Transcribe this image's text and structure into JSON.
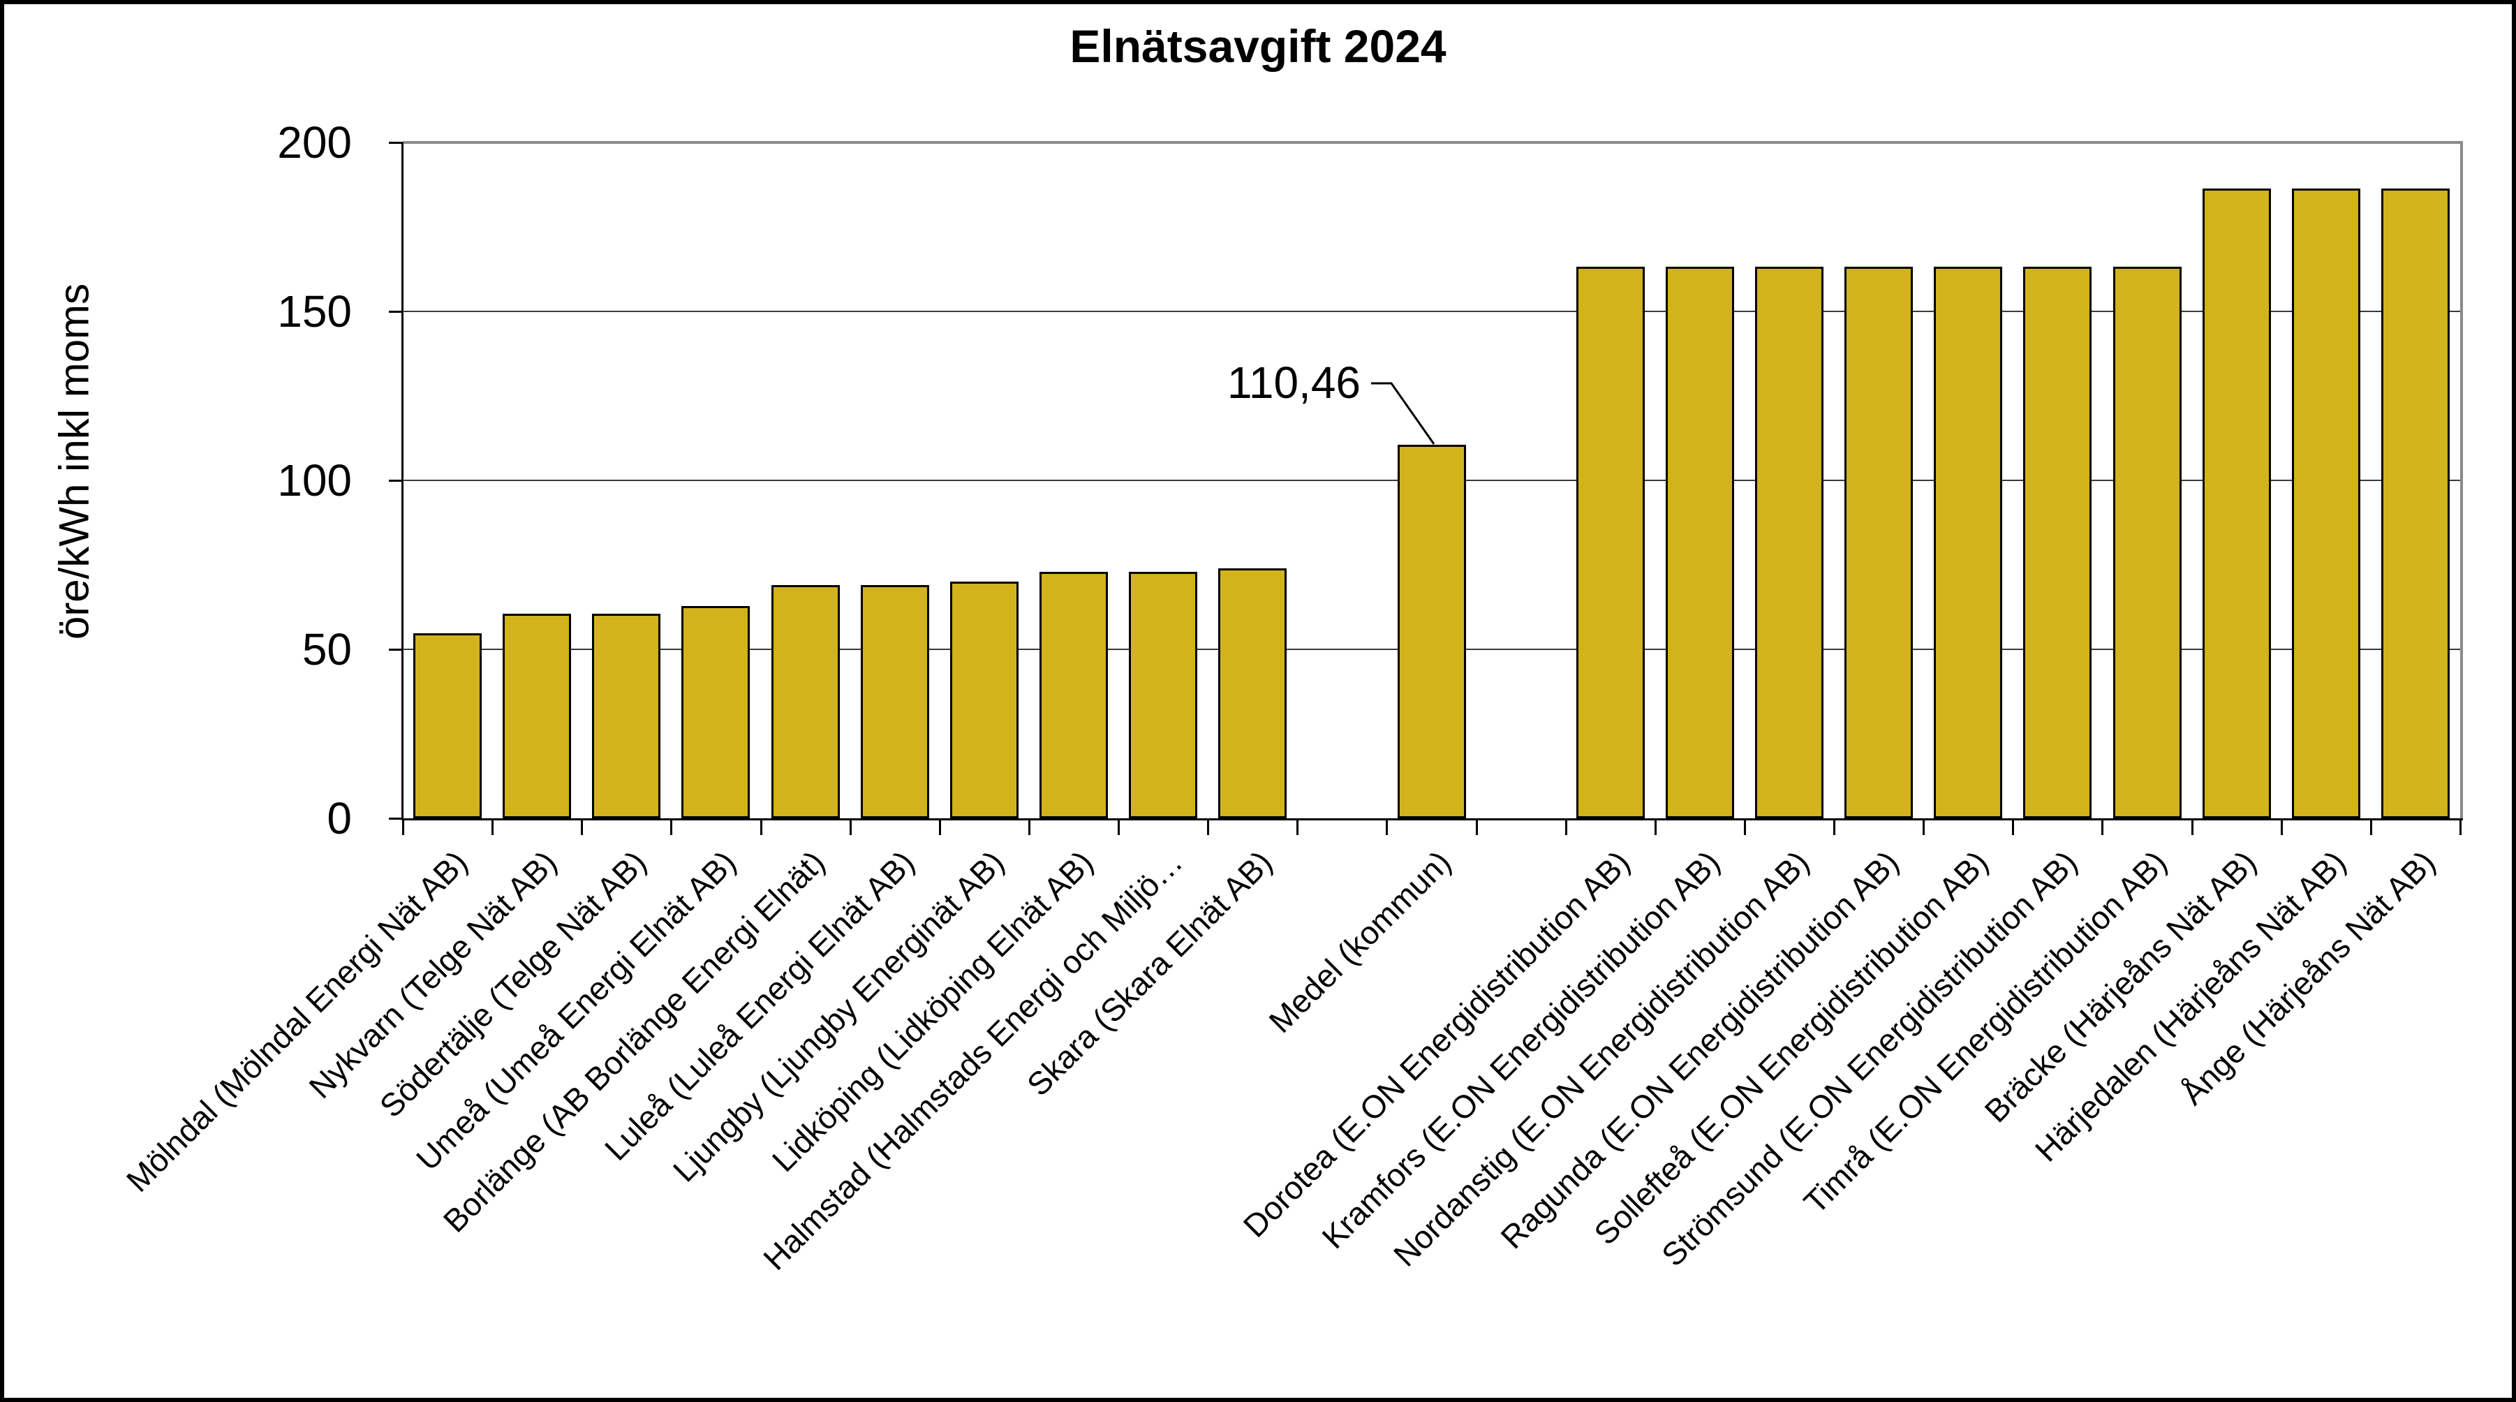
{
  "chart": {
    "title": "Elnätsavgift 2024",
    "ylabel": "öre/kWh inkl moms",
    "annotation_text": "110,46"
  },
  "chart_data": {
    "type": "bar",
    "title": "Elnätsavgift 2024",
    "xlabel": "",
    "ylabel": "öre/kWh inkl moms",
    "ylim": [
      0,
      200
    ],
    "yticks": [
      0,
      50,
      100,
      150,
      200
    ],
    "grid": true,
    "legend": "none",
    "bar_color": "#D3B31C",
    "bar_border_color": "#000000",
    "categories": [
      "Mölndal (Mölndal Energi Nät AB)",
      "Nykvarn (Telge Nät AB)",
      "Södertälje (Telge Nät AB)",
      "Umeå (Umeå Energi Elnät AB)",
      "Borlänge (AB Borlänge Energi Elnät)",
      "Luleå (Luleå Energi Elnät AB)",
      "Ljungby (Ljungby Energinät AB)",
      "Lidköping (Lidköping Elnät AB)",
      "Halmstad (Halmstads Energi och Miljö…",
      "Skara (Skara Elnät AB)",
      "Medel (kommun)",
      "Dorotea (E.ON Energidistribution AB)",
      "Kramfors (E.ON Energidistribution AB)",
      "Nordanstig (E.ON Energidistribution AB)",
      "Ragunda (E.ON Energidistribution AB)",
      "Sollefteå (E.ON Energidistribution AB)",
      "Strömsund (E.ON Energidistribution AB)",
      "Timrå (E.ON Energidistribution AB)",
      "Bräcke (Härjeåns Nät AB)",
      "Härjedalen (Härjeåns Nät AB)",
      "Ånge (Härjeåns Nät AB)"
    ],
    "values": [
      54.7,
      60.5,
      60.5,
      62.8,
      69,
      69,
      70,
      73,
      73,
      74,
      110.46,
      163.3,
      163.3,
      163.3,
      163.3,
      163.3,
      163.3,
      163.3,
      186.3,
      186.3,
      186.3
    ],
    "slots": [
      0,
      1,
      2,
      3,
      4,
      5,
      6,
      7,
      8,
      9,
      11,
      13,
      14,
      15,
      16,
      17,
      18,
      19,
      20,
      21,
      22
    ],
    "n_slots": 23,
    "annotation": {
      "text": "110,46",
      "category": "Medel (kommun)",
      "value": 110.46
    }
  }
}
